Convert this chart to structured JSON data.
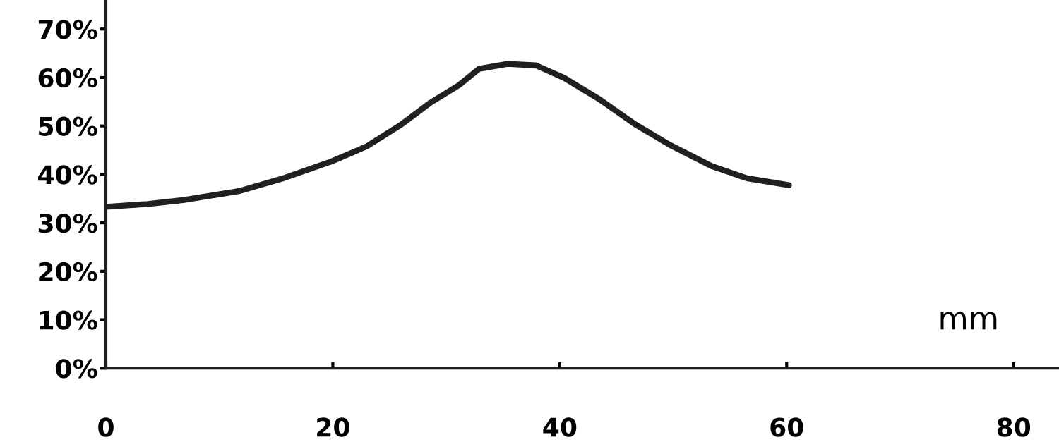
{
  "chart_data": {
    "type": "line",
    "xlabel": "mm",
    "x": [
      0,
      3.7,
      6.8,
      11.8,
      15.5,
      19.9,
      23,
      26.1,
      28.6,
      31.1,
      32.9,
      35.4,
      37.9,
      40.4,
      43.5,
      46.6,
      49.7,
      53.4,
      56.5,
      60.2
    ],
    "series": [
      {
        "color": "#231f20",
        "values": [
          33.3,
          33.9,
          34.7,
          36.6,
          39.1,
          42.7,
          45.8,
          50.4,
          54.8,
          58.4,
          61.8,
          62.8,
          62.5,
          59.9,
          55.5,
          50.4,
          46.1,
          41.7,
          39.2,
          37.8
        ]
      }
    ],
    "xlim": [
      0,
      84
    ],
    "xticks": [
      0,
      20,
      40,
      60,
      80
    ],
    "ylim": [
      0,
      76
    ],
    "yticks": [
      {
        "value": 0,
        "label": "0%"
      },
      {
        "value": 10,
        "label": "10%"
      },
      {
        "value": 20,
        "label": "20%"
      },
      {
        "value": 30,
        "label": "30%"
      },
      {
        "value": 40,
        "label": "40%"
      },
      {
        "value": 50,
        "label": "50%"
      },
      {
        "value": 60,
        "label": "60%"
      },
      {
        "value": 70,
        "label": "70%"
      }
    ],
    "grid": false,
    "legend": false,
    "marker": "none",
    "line_style": "solid"
  }
}
